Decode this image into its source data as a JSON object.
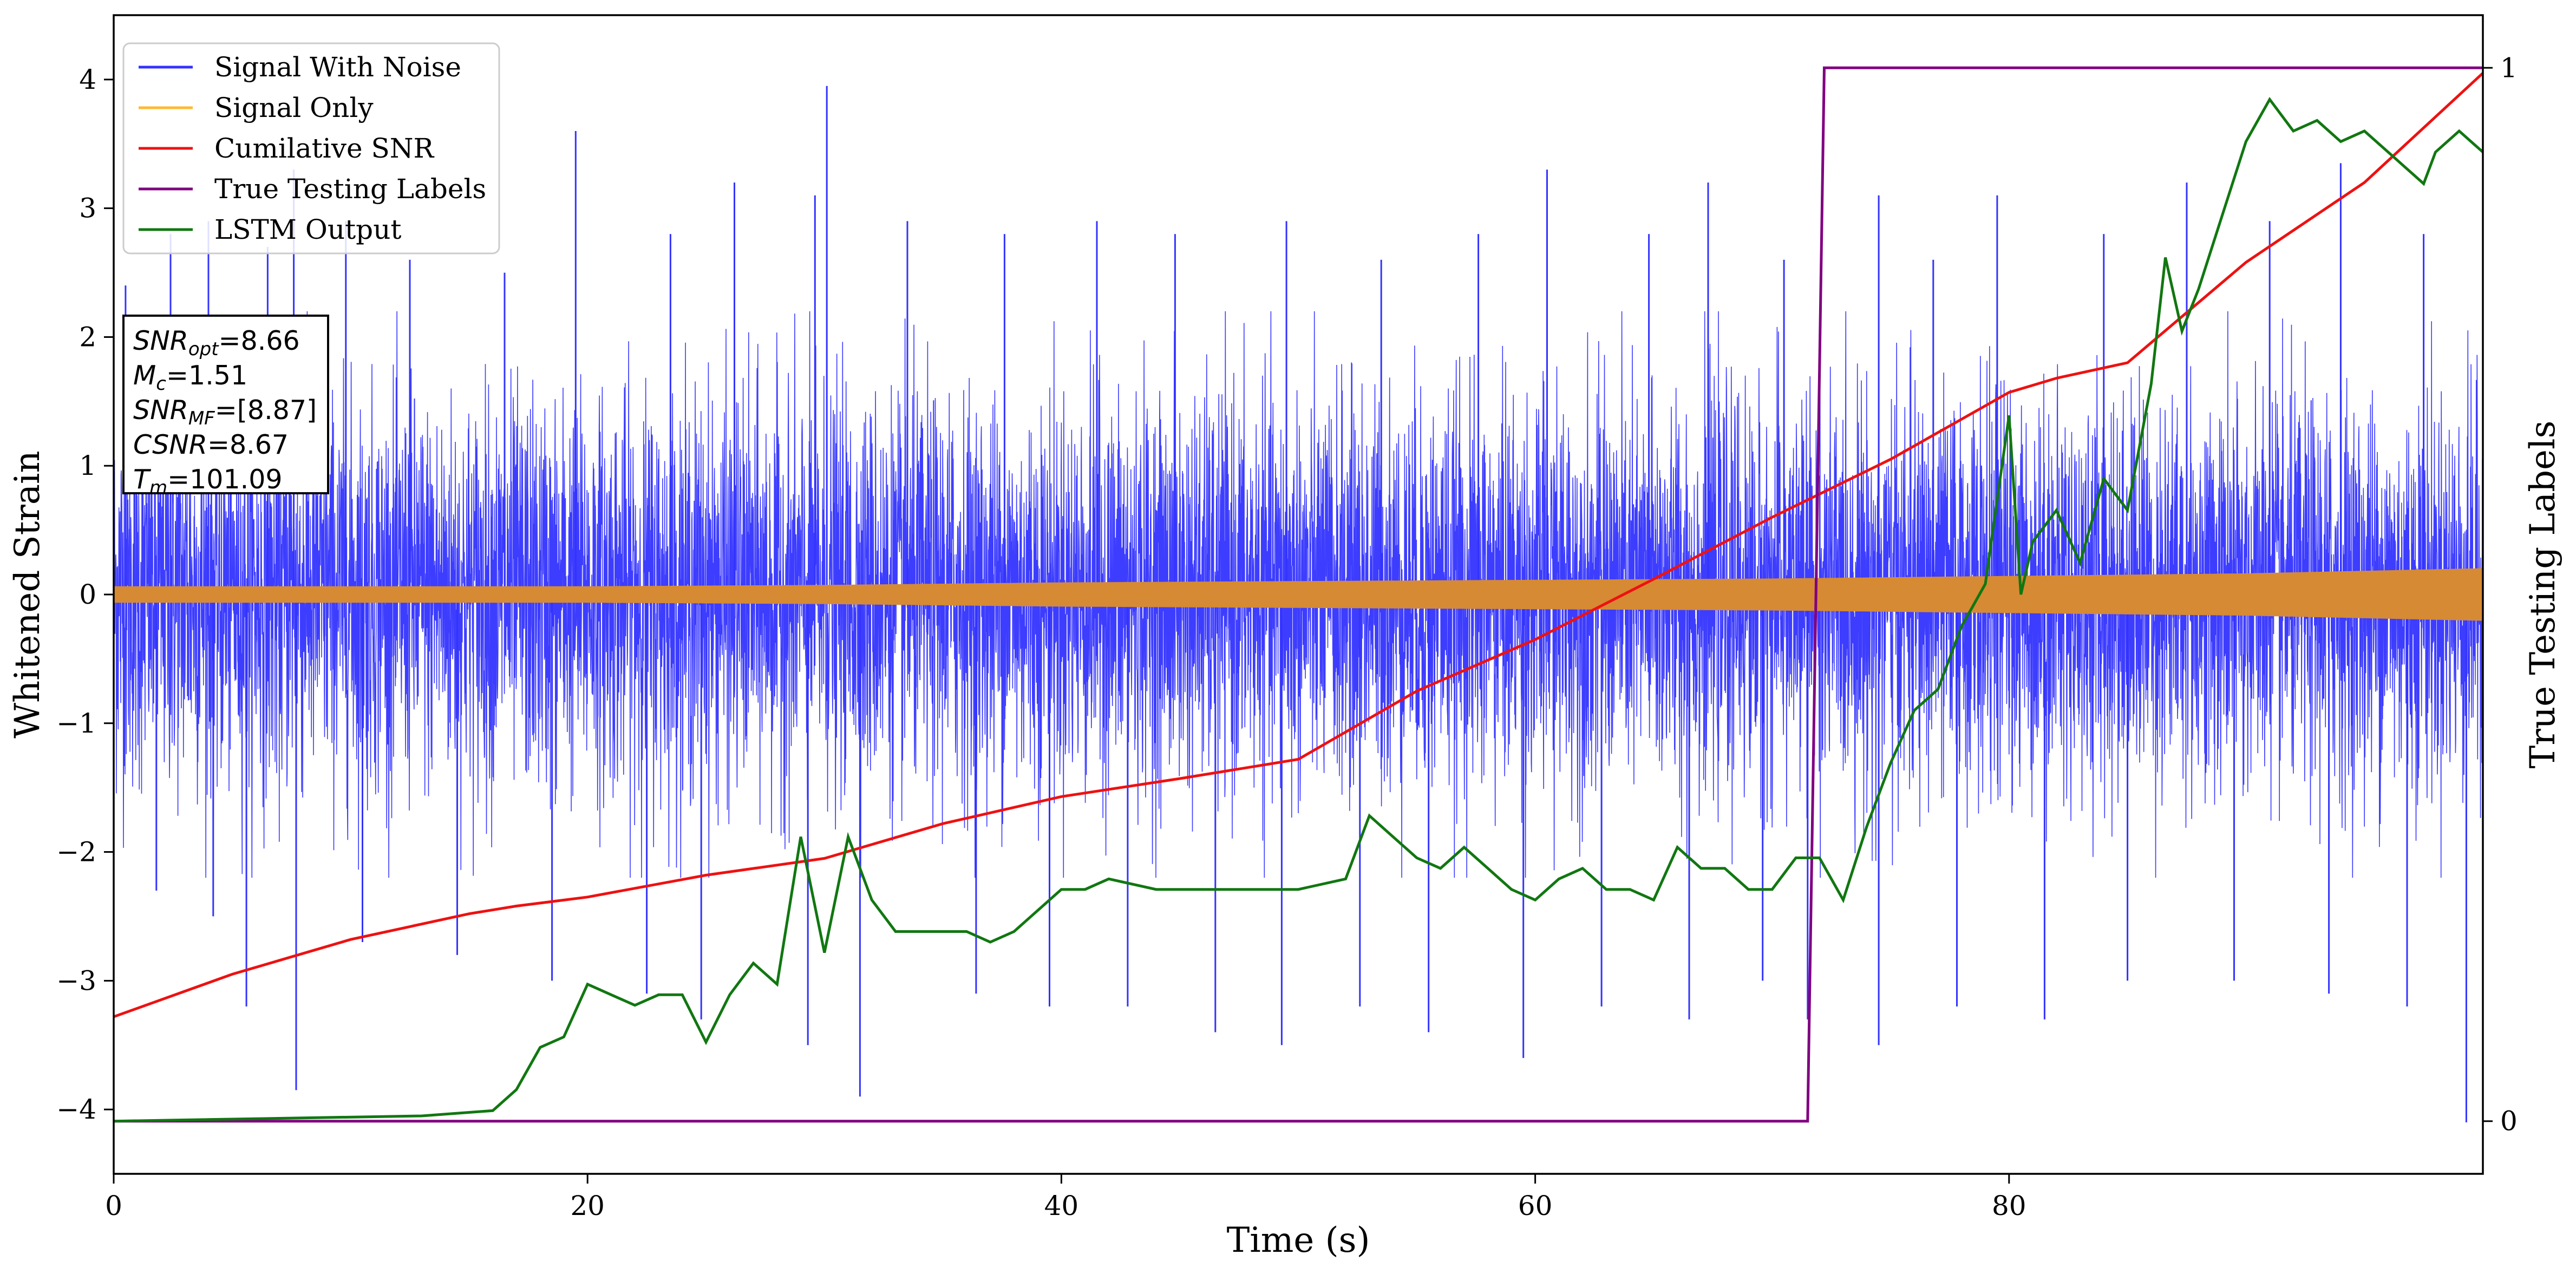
{
  "chart_data": {
    "type": "line",
    "xlabel": "Time (s)",
    "ylabel": "Whitened Strain",
    "y2label": "True Testing Labels",
    "xlim": [
      0,
      100
    ],
    "ylim": [
      -4.5,
      4.5
    ],
    "y2lim": [
      -0.05,
      1.05
    ],
    "grid": false,
    "legend_position": "top-left",
    "x_ticks": [
      0,
      20,
      40,
      60,
      80
    ],
    "y_ticks": [
      -4,
      -3,
      -2,
      -1,
      0,
      1,
      2,
      3,
      4
    ],
    "y2_ticks": [
      0,
      1
    ],
    "y2_tick_labels": [
      "0",
      "1"
    ],
    "colors": {
      "signal_with_noise": "#3333ff",
      "signal_only": "#ffb833",
      "cumulative_snr": "#ee1111",
      "true_labels": "#800080",
      "lstm_output": "#117711",
      "signal_overlap": "#d68a33"
    },
    "series": [
      {
        "name": "Signal With Noise",
        "axis": "y",
        "style": "dense-noise",
        "band_sigma": 0.75,
        "t": [
          0,
          100
        ],
        "spikes_up": [
          [
            0.5,
            2.4
          ],
          [
            2.4,
            2.8
          ],
          [
            4.0,
            2.9
          ],
          [
            6.5,
            2.7
          ],
          [
            7.6,
            3.3
          ],
          [
            9.8,
            2.9
          ],
          [
            12.5,
            2.6
          ],
          [
            16.5,
            2.5
          ],
          [
            19.5,
            3.6
          ],
          [
            23.5,
            2.8
          ],
          [
            26.2,
            3.2
          ],
          [
            29.6,
            3.1
          ],
          [
            30.1,
            3.95
          ],
          [
            33.5,
            2.9
          ],
          [
            37.6,
            2.8
          ],
          [
            41.5,
            2.9
          ],
          [
            44.8,
            2.8
          ],
          [
            49.5,
            2.9
          ],
          [
            53.5,
            2.6
          ],
          [
            57.6,
            2.8
          ],
          [
            60.5,
            3.3
          ],
          [
            64.8,
            2.8
          ],
          [
            67.3,
            3.2
          ],
          [
            70.5,
            2.6
          ],
          [
            74.5,
            3.1
          ],
          [
            76.8,
            2.6
          ],
          [
            79.5,
            3.1
          ],
          [
            84.0,
            2.8
          ],
          [
            87.5,
            3.2
          ],
          [
            91.0,
            2.9
          ],
          [
            94.0,
            3.35
          ],
          [
            97.5,
            2.8
          ]
        ],
        "spikes_down": [
          [
            1.8,
            -2.3
          ],
          [
            4.2,
            -2.5
          ],
          [
            5.6,
            -3.2
          ],
          [
            7.7,
            -3.85
          ],
          [
            10.5,
            -2.7
          ],
          [
            14.5,
            -2.8
          ],
          [
            18.5,
            -3.0
          ],
          [
            22.5,
            -3.1
          ],
          [
            24.8,
            -3.3
          ],
          [
            29.3,
            -3.5
          ],
          [
            31.5,
            -3.9
          ],
          [
            36.4,
            -3.1
          ],
          [
            39.5,
            -3.2
          ],
          [
            42.8,
            -3.2
          ],
          [
            46.5,
            -3.4
          ],
          [
            49.3,
            -3.5
          ],
          [
            52.6,
            -3.2
          ],
          [
            55.5,
            -3.4
          ],
          [
            59.5,
            -3.6
          ],
          [
            62.8,
            -3.2
          ],
          [
            66.5,
            -3.3
          ],
          [
            69.6,
            -3.0
          ],
          [
            71.5,
            -3.3
          ],
          [
            74.5,
            -3.5
          ],
          [
            77.8,
            -3.2
          ],
          [
            81.5,
            -3.3
          ],
          [
            85.0,
            -3.0
          ],
          [
            89.5,
            -3.0
          ],
          [
            93.5,
            -3.1
          ],
          [
            96.8,
            -3.2
          ],
          [
            99.3,
            -4.1
          ]
        ]
      },
      {
        "name": "Signal Only",
        "axis": "y",
        "style": "band",
        "t": [
          0,
          20,
          30,
          40,
          50,
          60,
          70,
          80,
          90,
          100
        ],
        "amplitude": [
          0.06,
          0.06,
          0.07,
          0.09,
          0.1,
          0.11,
          0.12,
          0.14,
          0.16,
          0.2
        ]
      },
      {
        "name": "Cumilative SNR",
        "axis": "y",
        "t": [
          0,
          5,
          10,
          15,
          17,
          20,
          25,
          30,
          35,
          40,
          45,
          50,
          55,
          60,
          65,
          70,
          75,
          80,
          82,
          85,
          90,
          95,
          100
        ],
        "values": [
          -3.28,
          -2.95,
          -2.68,
          -2.48,
          -2.42,
          -2.35,
          -2.18,
          -2.05,
          -1.78,
          -1.57,
          -1.43,
          -1.28,
          -0.75,
          -0.35,
          0.12,
          0.6,
          1.05,
          1.57,
          1.68,
          1.8,
          2.58,
          3.2,
          4.05
        ]
      },
      {
        "name": "True Testing Labels",
        "axis": "y2",
        "t": [
          0,
          71.5,
          72.2,
          100
        ],
        "values": [
          0,
          0,
          1,
          1
        ]
      },
      {
        "name": "LSTM Output",
        "axis": "y2",
        "t": [
          0,
          13,
          16,
          17,
          18,
          19,
          20,
          21,
          22,
          23,
          24,
          25,
          26,
          27,
          28,
          29,
          30,
          31,
          32,
          33,
          34,
          36,
          37,
          38,
          39,
          40,
          41,
          42,
          44,
          46,
          48,
          50,
          52,
          53,
          54,
          55,
          56,
          57,
          58,
          59,
          60,
          61,
          62,
          63,
          64,
          65,
          66,
          67,
          68,
          69,
          70,
          71,
          72,
          73,
          74,
          75,
          76,
          77,
          78,
          79,
          80,
          80.5,
          81,
          82,
          83,
          84,
          85,
          86,
          86.6,
          87.3,
          88,
          89,
          90,
          91,
          92,
          93,
          94,
          95,
          96,
          97,
          97.5,
          98,
          99,
          100
        ],
        "values": [
          0,
          0.005,
          0.01,
          0.03,
          0.07,
          0.08,
          0.13,
          0.12,
          0.11,
          0.12,
          0.12,
          0.075,
          0.12,
          0.15,
          0.13,
          0.27,
          0.16,
          0.27,
          0.21,
          0.18,
          0.18,
          0.18,
          0.17,
          0.18,
          0.2,
          0.22,
          0.22,
          0.23,
          0.22,
          0.22,
          0.22,
          0.22,
          0.23,
          0.29,
          0.27,
          0.25,
          0.24,
          0.26,
          0.24,
          0.22,
          0.21,
          0.23,
          0.24,
          0.22,
          0.22,
          0.21,
          0.26,
          0.24,
          0.24,
          0.22,
          0.22,
          0.25,
          0.25,
          0.21,
          0.28,
          0.34,
          0.39,
          0.41,
          0.47,
          0.51,
          0.67,
          0.5,
          0.55,
          0.58,
          0.53,
          0.61,
          0.58,
          0.7,
          0.82,
          0.75,
          0.79,
          0.86,
          0.93,
          0.97,
          0.94,
          0.95,
          0.93,
          0.94,
          0.92,
          0.9,
          0.89,
          0.92,
          0.94,
          0.92
        ]
      }
    ]
  },
  "info_box": {
    "lines": [
      {
        "var": "SNR",
        "sub": "opt",
        "value": "=8.66"
      },
      {
        "var": "M",
        "sub": "c",
        "value": "=1.51"
      },
      {
        "var": "SNR",
        "sub": "MF",
        "value": "=[8.87]"
      },
      {
        "var": "CSNR",
        "sub": "",
        "value": "=8.67"
      },
      {
        "var": "T",
        "sub": "m",
        "value": "=101.09"
      }
    ]
  }
}
